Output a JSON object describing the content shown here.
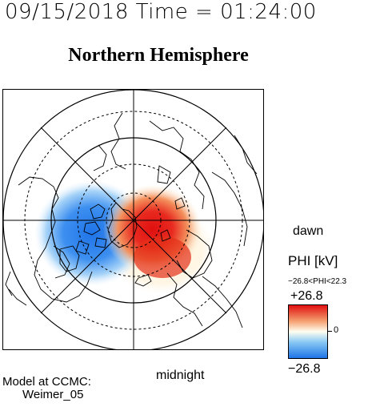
{
  "header": {
    "timestamp": "09/15/2018 Time = 01:24:00",
    "title": "Northern Hemisphere"
  },
  "map": {
    "projection": "polar-stereographic-north",
    "orientation_labels": {
      "dawn": "dawn",
      "midnight": "midnight"
    },
    "potential_cells": [
      {
        "sign": "positive",
        "color": "#e01010",
        "region": "midnight-dawn sector"
      },
      {
        "sign": "negative",
        "color": "#1f74e8",
        "region": "dusk sector"
      }
    ]
  },
  "colorbar": {
    "quantity_label": "PHI [kV]",
    "range_label": "−26.8<PHI<22.3",
    "max_label": "+26.8",
    "mid_label": "0",
    "min_label": "−26.8",
    "colors": {
      "high": "#e01010",
      "mid": "#fffff0",
      "low": "#1f74e8"
    }
  },
  "footer": {
    "model_line1": "Model at CCMC:",
    "model_line2": "Weimer_05"
  }
}
